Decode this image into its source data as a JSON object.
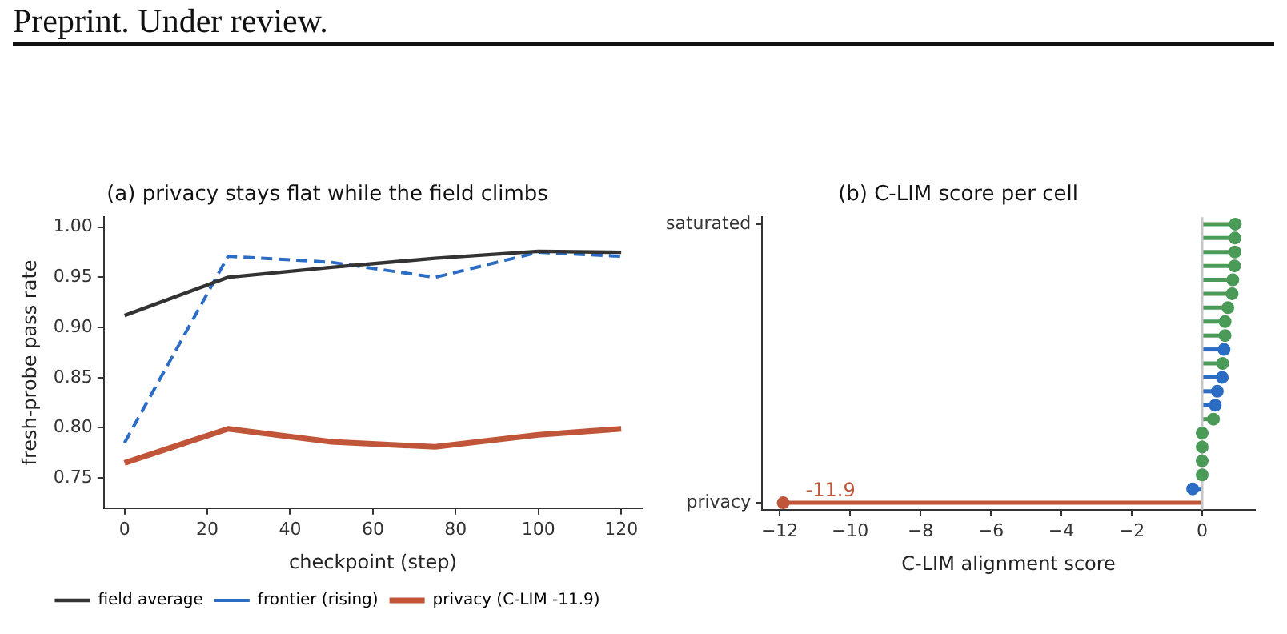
{
  "chart_data": [
    {
      "type": "line",
      "title": "(a) privacy stays flat while the field climbs",
      "xlabel": "checkpoint (step)",
      "ylabel": "fresh-probe pass rate",
      "annotations": [
        "Preprint. Under review."
      ],
      "x": [
        0,
        25,
        50,
        75,
        100,
        120
      ],
      "series": [
        {
          "name": "field average",
          "color": "#333333",
          "line_style": "solid",
          "values": [
            0.912,
            0.95,
            0.96,
            0.969,
            0.976,
            0.975
          ]
        },
        {
          "name": "frontier (rising)",
          "color": "#2b6cc4",
          "line_style": "dashed",
          "values": [
            0.785,
            0.971,
            0.965,
            0.95,
            0.975,
            0.971
          ]
        },
        {
          "name": "privacy (C-LIM -11.9)",
          "color": "#c0553a",
          "line_style": "solid",
          "values": [
            0.765,
            0.799,
            0.786,
            0.781,
            0.793,
            0.799
          ]
        }
      ],
      "xlim": [
        -5,
        125
      ],
      "xticks": [
        0,
        20,
        40,
        60,
        80,
        100,
        120
      ],
      "ylim": [
        0.72,
        1.01
      ],
      "yticks": [
        {
          "value": 0.75,
          "label": "0.75"
        },
        {
          "value": 0.8,
          "label": "0.80"
        },
        {
          "value": 0.85,
          "label": "0.85"
        },
        {
          "value": 0.9,
          "label": "0.90"
        },
        {
          "value": 0.95,
          "label": "0.95"
        },
        {
          "value": 1.0,
          "label": "1.00"
        }
      ],
      "legend": "bottom",
      "grid": false,
      "marker": "none"
    },
    {
      "type": "lollipop",
      "orientation": "horizontal",
      "title": "(b) C-LIM score per cell",
      "xlabel": "C-LIM alignment score",
      "categories": [
        "saturated",
        null,
        null,
        null,
        null,
        null,
        null,
        null,
        null,
        null,
        null,
        null,
        null,
        null,
        null,
        null,
        null,
        null,
        null,
        null,
        "privacy"
      ],
      "values": [
        0.94,
        0.93,
        0.93,
        0.92,
        0.87,
        0.85,
        0.73,
        0.65,
        0.65,
        0.62,
        0.58,
        0.57,
        0.43,
        0.37,
        0.32,
        0,
        0,
        0,
        0,
        -0.27,
        -11.9
      ],
      "colors": [
        "#4a9a58",
        "#4a9a58",
        "#4a9a58",
        "#4a9a58",
        "#4a9a58",
        "#4a9a58",
        "#4a9a58",
        "#4a9a58",
        "#4a9a58",
        "#2b6cc4",
        "#4a9a58",
        "#2b6cc4",
        "#2b6cc4",
        "#2b6cc4",
        "#4a9a58",
        "#4a9a58",
        "#4a9a58",
        "#4a9a58",
        "#4a9a58",
        "#2b6cc4",
        "#c0553a"
      ],
      "value_labels": [
        null,
        null,
        null,
        null,
        null,
        null,
        null,
        null,
        null,
        null,
        null,
        null,
        null,
        null,
        null,
        null,
        null,
        null,
        null,
        null,
        "-11.9"
      ],
      "xlim": [
        -12.5,
        1.5
      ],
      "xticks": [
        {
          "value": -12,
          "label": "−12"
        },
        {
          "value": -10,
          "label": "−10"
        },
        {
          "value": -8,
          "label": "−8"
        },
        {
          "value": -6,
          "label": "−6"
        },
        {
          "value": -4,
          "label": "−4"
        },
        {
          "value": -2,
          "label": "−2"
        },
        0
      ],
      "ref_lines": [
        {
          "axis": "x",
          "value": 0,
          "color": "#c8c8c8"
        }
      ],
      "grid": false,
      "legend": false
    }
  ]
}
